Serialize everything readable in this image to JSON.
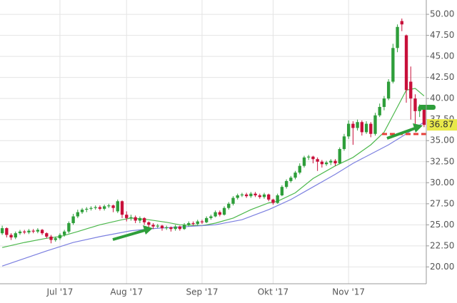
{
  "chart_data": {
    "type": "candlestick",
    "categories": [
      null,
      null,
      null,
      null,
      null,
      null,
      null,
      null,
      null,
      null,
      null,
      null,
      null,
      "Jul '17",
      null,
      null,
      null,
      null,
      null,
      null,
      null,
      null,
      null,
      null,
      null,
      null,
      null,
      null,
      "Aug '17",
      null,
      null,
      null,
      null,
      null,
      null,
      null,
      null,
      null,
      null,
      null,
      null,
      null,
      null,
      null,
      null,
      "Sep '17",
      null,
      null,
      null,
      null,
      null,
      null,
      null,
      null,
      null,
      null,
      null,
      null,
      null,
      null,
      null,
      "Okt '17",
      null,
      null,
      null,
      null,
      null,
      null,
      null,
      null,
      null,
      null,
      null,
      null,
      null,
      null,
      null,
      null,
      "Nov '17",
      null,
      null,
      null,
      null,
      null,
      null,
      null,
      null,
      null,
      null,
      null,
      null,
      null,
      null,
      null,
      null,
      null
    ],
    "open": [
      24.0,
      24.6,
      23.8,
      23.5,
      24.0,
      24.2,
      24.1,
      24.3,
      24.2,
      24.4,
      24.0,
      23.6,
      23.2,
      23.4,
      23.8,
      24.2,
      25.2,
      26.0,
      26.5,
      26.8,
      26.9,
      27.0,
      27.1,
      26.9,
      27.2,
      27.3,
      26.6,
      27.8,
      26.2,
      25.8,
      25.9,
      25.5,
      25.8,
      25.3,
      25.0,
      24.8,
      24.9,
      24.6,
      24.7,
      24.5,
      24.8,
      24.5,
      25.0,
      25.2,
      25.1,
      25.4,
      25.3,
      25.8,
      26.0,
      26.5,
      26.2,
      27.0,
      27.5,
      28.2,
      28.5,
      28.6,
      28.4,
      28.7,
      28.5,
      28.3,
      28.6,
      28.0,
      27.6,
      28.5,
      29.5,
      30.2,
      30.6,
      31.2,
      32.0,
      33.0,
      33.1,
      32.8,
      32.5,
      32.2,
      32.4,
      32.6,
      32.3,
      34.0,
      35.5,
      37.0,
      36.5,
      37.2,
      36.0,
      37.0,
      35.8,
      38.0,
      39.0,
      40.0,
      42.0,
      46.0,
      49.2,
      47.5,
      42.0,
      40.0,
      38.5,
      39.0
    ],
    "high": [
      24.9,
      24.7,
      24.0,
      24.2,
      24.4,
      24.4,
      24.5,
      24.5,
      24.6,
      24.5,
      24.1,
      23.8,
      23.6,
      24.0,
      24.4,
      25.4,
      26.3,
      26.8,
      27.0,
      27.1,
      27.2,
      27.3,
      27.3,
      27.4,
      27.5,
      27.4,
      28.0,
      27.9,
      26.6,
      26.2,
      26.1,
      26.0,
      25.9,
      25.4,
      25.2,
      25.1,
      25.0,
      24.9,
      24.8,
      25.0,
      24.9,
      25.2,
      25.4,
      25.4,
      25.6,
      25.6,
      26.0,
      26.2,
      26.7,
      26.7,
      27.2,
      27.7,
      28.4,
      28.7,
      28.8,
      28.8,
      28.9,
      28.9,
      28.7,
      28.8,
      28.7,
      28.1,
      28.7,
      29.7,
      30.4,
      30.8,
      31.4,
      32.3,
      33.2,
      33.3,
      33.2,
      33.0,
      32.7,
      32.6,
      32.8,
      32.8,
      34.2,
      35.8,
      37.4,
      37.3,
      37.5,
      37.4,
      37.3,
      37.2,
      38.3,
      39.4,
      40.3,
      42.3,
      46.5,
      48.8,
      49.5,
      47.6,
      43.8,
      40.5,
      39.3,
      39.2
    ],
    "low": [
      23.8,
      23.5,
      23.2,
      23.3,
      23.8,
      23.9,
      23.9,
      24.0,
      24.0,
      23.8,
      23.4,
      22.8,
      23.0,
      23.2,
      23.6,
      24.0,
      25.0,
      25.8,
      26.3,
      26.5,
      26.7,
      26.8,
      26.7,
      26.7,
      27.0,
      26.5,
      26.4,
      25.8,
      25.4,
      25.5,
      25.2,
      25.2,
      25.0,
      24.7,
      24.5,
      24.6,
      24.3,
      24.4,
      24.2,
      24.3,
      24.3,
      24.4,
      24.8,
      24.9,
      24.9,
      25.1,
      25.2,
      25.6,
      25.9,
      26.0,
      26.1,
      26.8,
      27.3,
      28.0,
      28.3,
      28.2,
      28.2,
      28.3,
      28.1,
      28.1,
      27.8,
      27.4,
      27.5,
      28.4,
      29.3,
      30.0,
      30.4,
      31.0,
      31.8,
      32.7,
      32.3,
      31.4,
      31.8,
      32.0,
      32.1,
      32.0,
      32.2,
      33.8,
      35.2,
      34.5,
      36.2,
      35.6,
      35.8,
      35.4,
      35.6,
      37.8,
      38.6,
      39.8,
      41.8,
      45.5,
      48.0,
      39.5,
      37.5,
      36.5,
      37.8,
      36.6
    ],
    "close": [
      24.6,
      23.8,
      23.5,
      24.0,
      24.2,
      24.1,
      24.3,
      24.2,
      24.4,
      24.0,
      23.6,
      23.2,
      23.4,
      23.8,
      24.2,
      25.2,
      26.0,
      26.5,
      26.8,
      26.9,
      27.0,
      27.1,
      26.9,
      27.2,
      27.3,
      27.0,
      27.8,
      26.2,
      25.8,
      25.9,
      25.5,
      25.8,
      25.3,
      25.0,
      24.8,
      24.9,
      24.6,
      24.7,
      24.5,
      24.8,
      24.5,
      25.0,
      25.2,
      25.1,
      25.4,
      25.3,
      25.8,
      26.0,
      26.5,
      26.2,
      27.0,
      27.5,
      28.2,
      28.5,
      28.6,
      28.4,
      28.7,
      28.5,
      28.3,
      28.6,
      28.0,
      27.6,
      28.5,
      29.5,
      30.2,
      30.6,
      31.2,
      32.0,
      33.0,
      33.1,
      32.8,
      32.5,
      32.2,
      32.4,
      32.6,
      32.3,
      34.0,
      35.5,
      37.0,
      36.5,
      37.2,
      36.0,
      37.0,
      35.8,
      38.0,
      39.0,
      40.0,
      42.0,
      46.0,
      48.5,
      48.8,
      41.0,
      40.0,
      38.5,
      39.0,
      36.87
    ],
    "up_color": "#2e9e3a",
    "down_color": "#c8103a",
    "lines": [
      {
        "color": "#4cb84c",
        "x": [
          0,
          5,
          10,
          13,
          17,
          22,
          27,
          29,
          33,
          37,
          40,
          45,
          48,
          52,
          56,
          60,
          62,
          66,
          70,
          75,
          79,
          83,
          86,
          89,
          91,
          93,
          95
        ],
        "values": [
          22.3,
          22.9,
          23.4,
          23.6,
          24.2,
          25.0,
          25.6,
          25.8,
          25.6,
          25.3,
          25.0,
          24.9,
          25.2,
          25.8,
          26.8,
          27.6,
          27.8,
          28.8,
          30.5,
          32.0,
          33.0,
          34.5,
          36.0,
          39.0,
          41.0,
          41.2,
          40.3
        ]
      },
      {
        "color": "#7b7fe0",
        "x": [
          0,
          5,
          10,
          16,
          22,
          29,
          35,
          42,
          48,
          54,
          60,
          65,
          70,
          75,
          79,
          83,
          87,
          91,
          95
        ],
        "values": [
          20.1,
          21.0,
          21.9,
          22.9,
          23.6,
          24.3,
          24.6,
          24.8,
          25.0,
          25.6,
          26.8,
          28.0,
          29.5,
          31.0,
          32.3,
          33.4,
          34.5,
          35.8,
          37.2
        ]
      }
    ],
    "ylim": [
      18,
      51.7
    ],
    "yticks": [
      {
        "value": 20,
        "label": "20.00"
      },
      {
        "value": 22.5,
        "label": "22.50"
      },
      {
        "value": 25,
        "label": "25.00"
      },
      {
        "value": 27.5,
        "label": "27.50"
      },
      {
        "value": 30,
        "label": "30.00"
      },
      {
        "value": 32.5,
        "label": "32.50"
      },
      {
        "value": 35,
        "label": "35.00"
      },
      {
        "value": 37.5,
        "label": "37.50"
      },
      {
        "value": 40,
        "label": "40.00"
      },
      {
        "value": 42.5,
        "label": "42.50"
      },
      {
        "value": 45,
        "label": "45.00"
      },
      {
        "value": 47.5,
        "label": "47.50"
      },
      {
        "value": 50,
        "label": "50.00"
      }
    ],
    "grid": true,
    "last_price_color": "#e8e84a"
  }
}
